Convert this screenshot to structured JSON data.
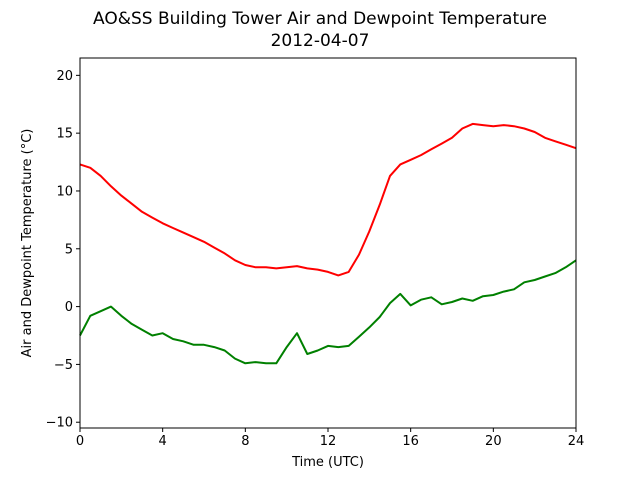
{
  "chart_data": {
    "type": "line",
    "title": "AO&SS Building Tower Air and Dewpoint Temperature",
    "subtitle": "2012-04-07",
    "xlabel": "Time (UTC)",
    "ylabel": "Air and Dewpoint Temperature (°C)",
    "xlim": [
      0,
      24
    ],
    "ylim": [
      -10.5,
      21.5
    ],
    "xticks": [
      0,
      4,
      8,
      12,
      16,
      20,
      24
    ],
    "yticks": [
      -10,
      -5,
      0,
      5,
      10,
      15,
      20
    ],
    "grid": false,
    "series": [
      {
        "color": "#ff0000",
        "x": [
          0,
          0.5,
          1,
          1.5,
          2,
          2.5,
          3,
          3.5,
          4,
          4.5,
          5,
          5.5,
          6,
          6.5,
          7,
          7.5,
          8,
          8.5,
          9,
          9.5,
          10,
          10.5,
          11,
          11.5,
          12,
          12.5,
          13,
          13.5,
          14,
          14.5,
          15,
          15.5,
          16,
          16.5,
          17,
          17.5,
          18,
          18.5,
          19,
          19.5,
          20,
          20.5,
          21,
          21.5,
          22,
          22.5,
          23,
          23.5,
          24
        ],
        "y": [
          12.3,
          12.0,
          11.3,
          10.4,
          9.6,
          8.9,
          8.2,
          7.7,
          7.2,
          6.8,
          6.4,
          6.0,
          5.6,
          5.1,
          4.6,
          4.0,
          3.6,
          3.4,
          3.4,
          3.3,
          3.4,
          3.5,
          3.3,
          3.2,
          3.0,
          2.7,
          3.0,
          4.5,
          6.5,
          8.8,
          11.3,
          12.3,
          12.7,
          13.1,
          13.6,
          14.1,
          14.6,
          15.4,
          15.8,
          15.7,
          15.6,
          15.7,
          15.6,
          15.4,
          15.1,
          14.6,
          14.3,
          14.0,
          13.7
        ]
      },
      {
        "color": "#008000",
        "x": [
          0,
          0.5,
          1,
          1.5,
          2,
          2.5,
          3,
          3.5,
          4,
          4.5,
          5,
          5.5,
          6,
          6.5,
          7,
          7.5,
          8,
          8.5,
          9,
          9.5,
          10,
          10.5,
          11,
          11.5,
          12,
          12.5,
          13,
          13.5,
          14,
          14.5,
          15,
          15.5,
          16,
          16.5,
          17,
          17.5,
          18,
          18.5,
          19,
          19.5,
          20,
          20.5,
          21,
          21.5,
          22,
          22.5,
          23,
          23.5,
          24
        ],
        "y": [
          -2.5,
          -0.8,
          -0.4,
          0.0,
          -0.8,
          -1.5,
          -2.0,
          -2.5,
          -2.3,
          -2.8,
          -3.0,
          -3.3,
          -3.3,
          -3.5,
          -3.8,
          -4.5,
          -4.9,
          -4.8,
          -4.9,
          -4.9,
          -3.5,
          -2.3,
          -4.1,
          -3.8,
          -3.4,
          -3.5,
          -3.4,
          -2.6,
          -1.8,
          -0.9,
          0.3,
          1.1,
          0.1,
          0.6,
          0.8,
          0.2,
          0.4,
          0.7,
          0.5,
          0.9,
          1.0,
          1.3,
          1.5,
          2.1,
          2.3,
          2.6,
          2.9,
          3.4,
          4.0
        ]
      }
    ]
  }
}
